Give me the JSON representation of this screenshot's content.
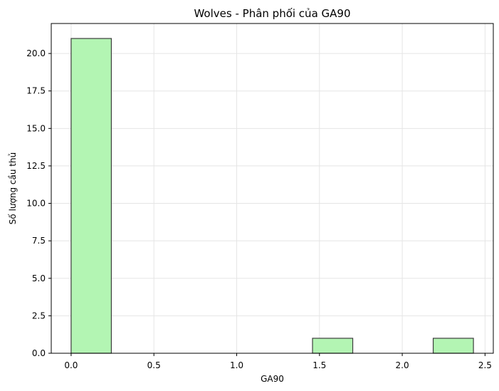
{
  "chart_data": {
    "type": "bar",
    "title": "Wolves - Phân phối của GA90",
    "xlabel": "GA90",
    "ylabel": "Số lượng cầu thủ",
    "xlim": [
      -0.12,
      2.55
    ],
    "ylim": [
      0,
      22
    ],
    "xticks": [
      0.0,
      0.5,
      1.0,
      1.5,
      2.0,
      2.5
    ],
    "xtick_labels": [
      "0.0",
      "0.5",
      "1.0",
      "1.5",
      "2.0",
      "2.5"
    ],
    "yticks": [
      0.0,
      2.5,
      5.0,
      7.5,
      10.0,
      12.5,
      15.0,
      17.5,
      20.0
    ],
    "ytick_labels": [
      "0.0",
      "2.5",
      "5.0",
      "7.5",
      "10.0",
      "12.5",
      "15.0",
      "17.5",
      "20.0"
    ],
    "bins": [
      {
        "x0": 0.0,
        "x1": 0.243,
        "count": 21
      },
      {
        "x0": 0.243,
        "x1": 0.486,
        "count": 0
      },
      {
        "x0": 0.486,
        "x1": 0.729,
        "count": 0
      },
      {
        "x0": 0.729,
        "x1": 0.972,
        "count": 0
      },
      {
        "x0": 0.972,
        "x1": 1.215,
        "count": 0
      },
      {
        "x0": 1.215,
        "x1": 1.458,
        "count": 0
      },
      {
        "x0": 1.458,
        "x1": 1.701,
        "count": 1
      },
      {
        "x0": 1.701,
        "x1": 1.944,
        "count": 0
      },
      {
        "x0": 1.944,
        "x1": 2.187,
        "count": 0
      },
      {
        "x0": 2.187,
        "x1": 2.43,
        "count": 1
      }
    ],
    "grid": true,
    "colors": {
      "bar_fill": "#b3f5b3",
      "bar_edge": "#3d3d3d",
      "grid": "#e5e5e5",
      "axis": "#000000"
    }
  }
}
